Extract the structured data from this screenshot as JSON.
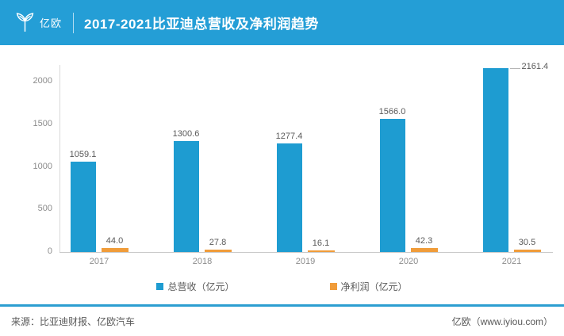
{
  "header": {
    "brand": "亿欧",
    "title": "2017-2021比亚迪总营收及净利润趋势"
  },
  "chart_data": {
    "type": "bar",
    "title": "2017-2021比亚迪总营收及净利润趋势",
    "categories": [
      "2017",
      "2018",
      "2019",
      "2020",
      "2021"
    ],
    "series": [
      {
        "name": "总营收（亿元）",
        "color": "#1E9CD1",
        "values": [
          1059.1,
          1300.6,
          1277.4,
          1566.0,
          2161.4
        ]
      },
      {
        "name": "净利润（亿元）",
        "color": "#F09C3A",
        "values": [
          44.0,
          27.8,
          16.1,
          42.3,
          30.5
        ]
      }
    ],
    "xlabel": "",
    "ylabel": "",
    "ylim": [
      0,
      2000
    ],
    "yticks": [
      0,
      500,
      1000,
      1500,
      2000
    ],
    "grid": false,
    "legend_position": "bottom",
    "value_labels": true,
    "value_label_decimals": 1
  },
  "footer": {
    "source": "来源：比亚迪财报、亿欧汽车",
    "credit": "亿欧（www.iyiou.com）"
  },
  "colors": {
    "header_bg": "#249ED6",
    "footer_divider": "#2C9ED1",
    "axis_line": "#C9C9C9",
    "tick_text": "#8C8C8C",
    "label_text": "#595959"
  }
}
